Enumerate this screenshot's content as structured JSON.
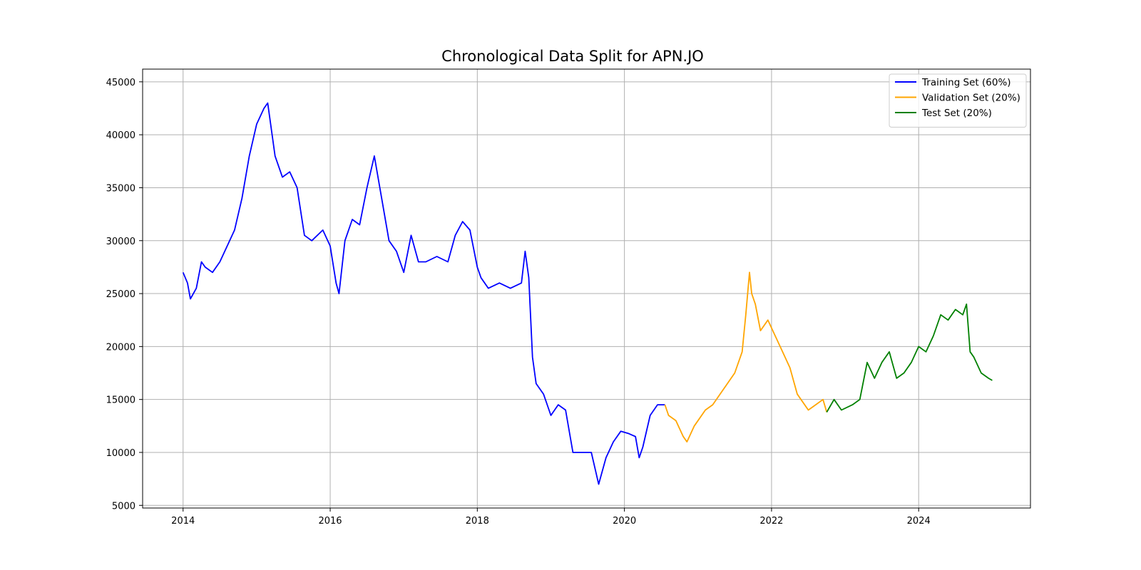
{
  "chart_data": {
    "type": "line",
    "title": "Chronological Data Split for APN.JO",
    "xlabel": "",
    "ylabel": "",
    "xlim": [
      2013.45,
      2025.52
    ],
    "ylim": [
      4750,
      46200
    ],
    "xticks": [
      2014,
      2016,
      2018,
      2020,
      2022,
      2024
    ],
    "xtick_labels": [
      "2014",
      "2016",
      "2018",
      "2020",
      "2022",
      "2024"
    ],
    "yticks": [
      5000,
      10000,
      15000,
      20000,
      25000,
      30000,
      35000,
      40000,
      45000
    ],
    "ytick_labels": [
      "5000",
      "10000",
      "15000",
      "20000",
      "25000",
      "30000",
      "35000",
      "40000",
      "45000"
    ],
    "grid": true,
    "legend_position": "top-right",
    "series": [
      {
        "name": "Training Set (60%)",
        "color": "#0000ff",
        "x": [
          2014.0,
          2014.06,
          2014.1,
          2014.18,
          2014.25,
          2014.3,
          2014.4,
          2014.5,
          2014.6,
          2014.7,
          2014.8,
          2014.9,
          2015.0,
          2015.1,
          2015.15,
          2015.25,
          2015.35,
          2015.45,
          2015.55,
          2015.65,
          2015.75,
          2015.9,
          2016.0,
          2016.08,
          2016.12,
          2016.2,
          2016.3,
          2016.4,
          2016.5,
          2016.6,
          2016.7,
          2016.8,
          2016.9,
          2017.0,
          2017.1,
          2017.2,
          2017.3,
          2017.45,
          2017.6,
          2017.7,
          2017.8,
          2017.9,
          2018.0,
          2018.05,
          2018.15,
          2018.3,
          2018.45,
          2018.6,
          2018.65,
          2018.7,
          2018.75,
          2018.8,
          2018.9,
          2019.0,
          2019.1,
          2019.2,
          2019.3,
          2019.45,
          2019.55,
          2019.65,
          2019.75,
          2019.85,
          2019.95,
          2020.05,
          2020.15,
          2020.2,
          2020.25,
          2020.35,
          2020.45,
          2020.55
        ],
        "y": [
          27000,
          26000,
          24500,
          25500,
          28000,
          27500,
          27000,
          28000,
          29500,
          31000,
          34000,
          38000,
          41000,
          42500,
          43000,
          38000,
          36000,
          36500,
          35000,
          30500,
          30000,
          31000,
          29500,
          26000,
          25000,
          30000,
          32000,
          31500,
          35000,
          38000,
          34000,
          30000,
          29000,
          27000,
          30500,
          28000,
          28000,
          28500,
          28000,
          30500,
          31800,
          31000,
          27500,
          26500,
          25500,
          26000,
          25500,
          26000,
          29000,
          26500,
          19000,
          16500,
          15500,
          13500,
          14500,
          14000,
          10000,
          10000,
          10000,
          7000,
          9500,
          11000,
          12000,
          11800,
          11500,
          9500,
          10500,
          13500,
          14500,
          14500
        ]
      },
      {
        "name": "Validation Set (20%)",
        "color": "#ffa500",
        "x": [
          2020.55,
          2020.6,
          2020.7,
          2020.8,
          2020.85,
          2020.95,
          2021.1,
          2021.2,
          2021.3,
          2021.4,
          2021.5,
          2021.6,
          2021.65,
          2021.7,
          2021.73,
          2021.78,
          2021.85,
          2021.95,
          2022.05,
          2022.15,
          2022.25,
          2022.35,
          2022.5,
          2022.6,
          2022.7,
          2022.75
        ],
        "y": [
          14500,
          13500,
          13000,
          11500,
          11000,
          12500,
          14000,
          14500,
          15500,
          16500,
          17500,
          19500,
          23000,
          27000,
          25000,
          24000,
          21500,
          22500,
          21000,
          19500,
          18000,
          15500,
          14000,
          14500,
          15000,
          13800
        ]
      },
      {
        "name": "Test Set (20%)",
        "color": "#008000",
        "x": [
          2022.75,
          2022.85,
          2022.95,
          2023.1,
          2023.2,
          2023.3,
          2023.4,
          2023.5,
          2023.6,
          2023.7,
          2023.8,
          2023.9,
          2024.0,
          2024.1,
          2024.2,
          2024.3,
          2024.4,
          2024.5,
          2024.6,
          2024.65,
          2024.7,
          2024.75,
          2024.85,
          2024.95,
          2025.0
        ],
        "y": [
          13800,
          15000,
          14000,
          14500,
          15000,
          18500,
          17000,
          18500,
          19500,
          17000,
          17500,
          18500,
          20000,
          19500,
          21000,
          23000,
          22500,
          23500,
          23000,
          24000,
          19500,
          19000,
          17500,
          17000,
          16800
        ]
      }
    ]
  }
}
